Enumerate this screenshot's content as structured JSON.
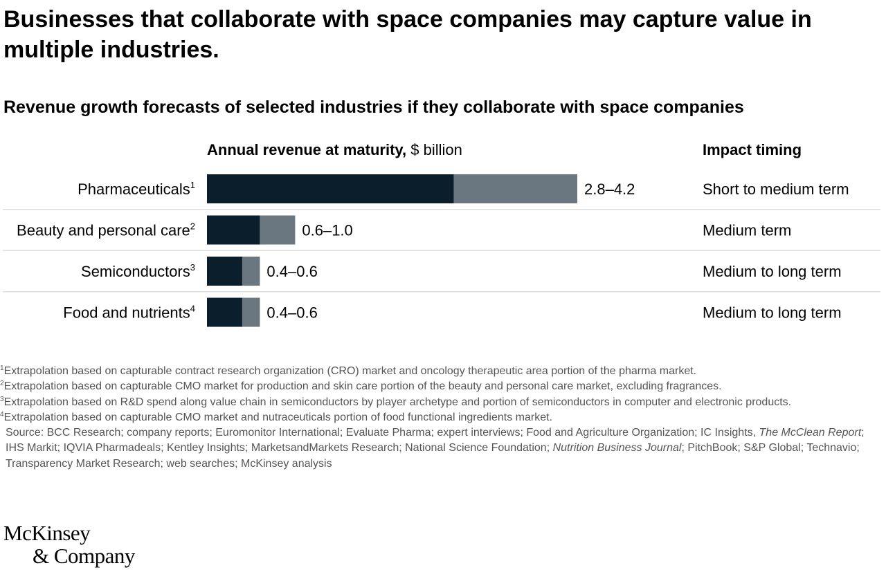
{
  "title": "Businesses that collaborate with space companies may capture value in multiple industries.",
  "subtitle": "Revenue growth forecasts of selected industries if they collaborate with space companies",
  "chart_data": {
    "type": "bar",
    "orientation": "horizontal",
    "stacked": true,
    "title": "Revenue growth forecasts of selected industries if they collaborate with space companies",
    "value_axis_label_bold": "Annual revenue at maturity,",
    "value_axis_unit": "$ billion",
    "impact_header": "Impact timing",
    "categories": [
      "Pharmaceuticals",
      "Beauty and personal care",
      "Semiconductors",
      "Food and nutrients"
    ],
    "footnote_markers": [
      "1",
      "2",
      "3",
      "4"
    ],
    "series": [
      {
        "name": "",
        "values": [
          2.8,
          0.6,
          0.4,
          0.4
        ],
        "color": "#0a1e2c"
      },
      {
        "name": "",
        "values": [
          1.4,
          0.4,
          0.2,
          0.2
        ],
        "color": "#6b7780"
      }
    ],
    "range_labels": [
      "2.8–4.2",
      "0.6–1.0",
      "0.4–0.6",
      "0.4–0.6"
    ],
    "ranges": [
      [
        2.8,
        4.2
      ],
      [
        0.6,
        1.0
      ],
      [
        0.4,
        0.6
      ],
      [
        0.4,
        0.6
      ]
    ],
    "impact_timing": [
      "Short to medium term",
      "Medium term",
      "Medium to long term",
      "Medium to long term"
    ],
    "xlim": [
      0,
      4.2
    ],
    "grid": false,
    "row_separators": true
  },
  "footnotes": [
    {
      "num": "1",
      "text": "Extrapolation based on capturable contract research organization (CRO) market and oncology therapeutic area portion of the pharma market."
    },
    {
      "num": "2",
      "text": "Extrapolation based on capturable CMO market for production and skin care portion of the beauty and personal care market, excluding fragrances."
    },
    {
      "num": "3",
      "text": "Extrapolation based on R&D spend along value chain in semiconductors by player archetype and portion of semiconductors in computer and electronic products."
    },
    {
      "num": "4",
      "text": "Extrapolation based on capturable CMO market and nutraceuticals portion of food functional ingredients market."
    }
  ],
  "source": {
    "part1": "Source: BCC Research; company reports; Euromonitor International; Evaluate Pharma; expert interviews; Food and Agriculture Organization; IC Insights, ",
    "italic1": "The McClean Report",
    "part2": "; IHS Markit; IQVIA Pharmadeals; Kentley Insights; MarketsandMarkets Research; National Science Foundation; ",
    "italic2": "Nutrition Business Journal",
    "part3": "; PitchBook; S&P Global; Technavio; Transparency Market Research; web searches; McKinsey analysis"
  },
  "logo": {
    "line1": "McKinsey",
    "line2": "& Company"
  },
  "colors": {
    "dark_bar": "#0a1e2c",
    "light_bar": "#6b7780",
    "separator": "#dddddd",
    "footnote_text": "#555555"
  }
}
